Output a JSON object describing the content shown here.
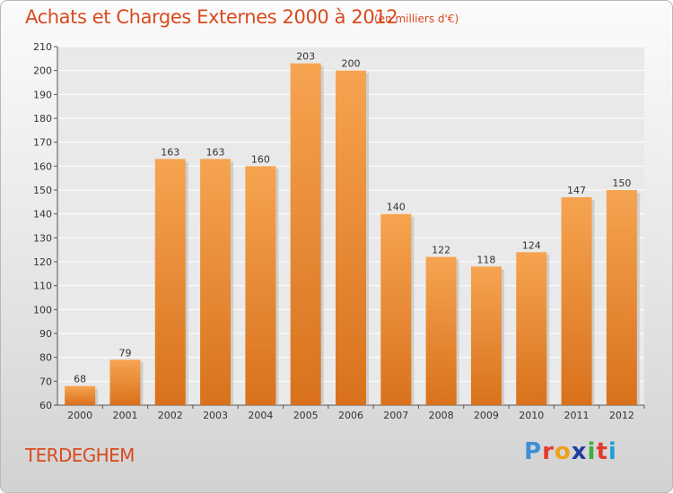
{
  "header": {
    "title": "Achats et Charges Externes 2000 à 2012",
    "subtitle": "(en milliers d'€)"
  },
  "footer": {
    "town": "TERDEGHEM",
    "logo_letters": [
      "P",
      "r",
      "o",
      "x",
      "i",
      "t",
      "i"
    ],
    "logo_colors": [
      "#3d8fd6",
      "#e23b2e",
      "#f0a01a",
      "#1f3f9e",
      "#3fae3a",
      "#e23b2e",
      "#1f9fd6"
    ]
  },
  "chart_data": {
    "type": "bar",
    "title": "Achats et Charges Externes 2000 à 2012",
    "subtitle": "(en milliers d'€)",
    "categories": [
      "2000",
      "2001",
      "2002",
      "2003",
      "2004",
      "2005",
      "2006",
      "2007",
      "2008",
      "2009",
      "2010",
      "2011",
      "2012"
    ],
    "values": [
      68,
      79,
      163,
      163,
      160,
      203,
      200,
      140,
      122,
      118,
      124,
      147,
      150
    ],
    "ylim": [
      60,
      210
    ],
    "yticks": [
      60,
      70,
      80,
      90,
      100,
      110,
      120,
      130,
      140,
      150,
      160,
      170,
      180,
      190,
      200,
      210
    ],
    "grid": true,
    "bar_color": "#f0913a",
    "xlabel": "",
    "ylabel": ""
  }
}
